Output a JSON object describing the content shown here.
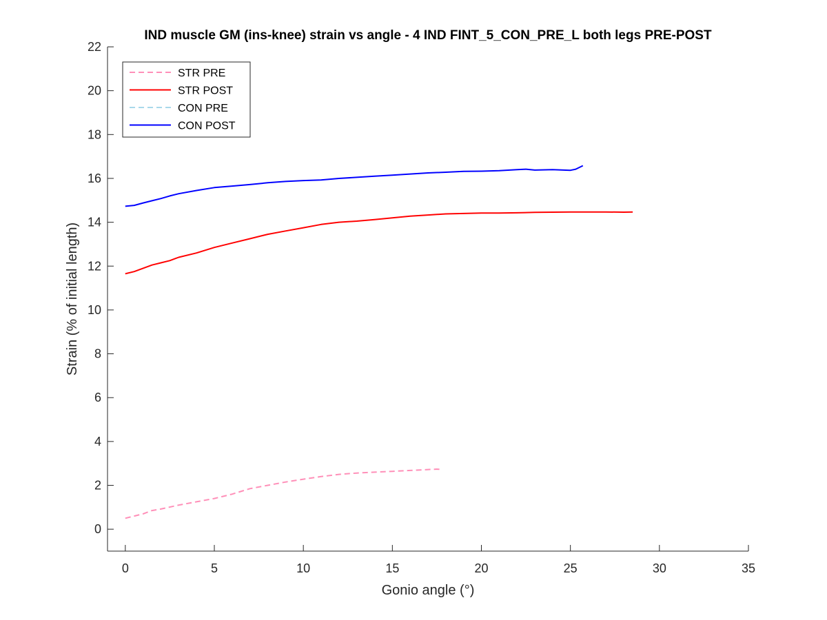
{
  "chart_data": {
    "type": "line",
    "title": "IND muscle GM (ins-knee) strain vs angle - 4 IND FINT_5_CON_PRE_L both legs PRE-POST",
    "xlabel": "Gonio angle (°)",
    "ylabel": "Strain (% of initial length)",
    "xlim": [
      -1,
      35
    ],
    "ylim": [
      -1,
      22
    ],
    "xticks": [
      0,
      5,
      10,
      15,
      20,
      25,
      30,
      35
    ],
    "yticks": [
      0,
      2,
      4,
      6,
      8,
      10,
      12,
      14,
      16,
      18,
      20,
      22
    ],
    "grid": false,
    "legend_position": "top-left",
    "series": [
      {
        "name": "STR PRE",
        "color": "#ff8fb8",
        "dash": "dashed",
        "x": [
          0,
          0.5,
          1,
          1.5,
          2,
          3,
          4,
          5,
          6,
          7,
          8,
          9,
          10,
          11,
          12,
          13,
          14,
          15,
          16,
          17,
          17.5,
          17.8
        ],
        "y": [
          0.5,
          0.6,
          0.7,
          0.85,
          0.92,
          1.1,
          1.25,
          1.4,
          1.6,
          1.85,
          2.0,
          2.15,
          2.28,
          2.4,
          2.5,
          2.56,
          2.6,
          2.64,
          2.68,
          2.72,
          2.74,
          2.72
        ]
      },
      {
        "name": "STR POST",
        "color": "#ff0000",
        "dash": "solid",
        "x": [
          0,
          0.5,
          1,
          1.5,
          2,
          2.5,
          3,
          4,
          5,
          6,
          7,
          8,
          9,
          10,
          11,
          12,
          13,
          14,
          15,
          16,
          17,
          18,
          19,
          20,
          21,
          22,
          23,
          24,
          25,
          26,
          27,
          28,
          28.5
        ],
        "y": [
          11.65,
          11.75,
          11.9,
          12.05,
          12.15,
          12.25,
          12.4,
          12.6,
          12.85,
          13.05,
          13.25,
          13.45,
          13.6,
          13.75,
          13.9,
          14.0,
          14.05,
          14.12,
          14.2,
          14.28,
          14.33,
          14.38,
          14.4,
          14.42,
          14.42,
          14.43,
          14.45,
          14.46,
          14.47,
          14.47,
          14.47,
          14.46,
          14.47
        ]
      },
      {
        "name": "CON PRE",
        "color": "#a8d8ea",
        "dash": "dashed",
        "x": [],
        "y": []
      },
      {
        "name": "CON POST",
        "color": "#0000ff",
        "dash": "solid",
        "x": [
          0,
          0.5,
          1,
          1.5,
          2,
          2.5,
          3,
          4,
          5,
          6,
          7,
          8,
          9,
          10,
          11,
          12,
          13,
          14,
          15,
          16,
          17,
          18,
          19,
          20,
          21,
          22,
          22.5,
          23,
          24,
          25,
          25.3,
          25.7
        ],
        "y": [
          14.73,
          14.77,
          14.88,
          14.98,
          15.08,
          15.2,
          15.3,
          15.45,
          15.58,
          15.65,
          15.72,
          15.8,
          15.86,
          15.9,
          15.93,
          16.0,
          16.05,
          16.1,
          16.15,
          16.2,
          16.25,
          16.28,
          16.32,
          16.33,
          16.35,
          16.4,
          16.42,
          16.38,
          16.4,
          16.37,
          16.42,
          16.58
        ]
      }
    ]
  }
}
